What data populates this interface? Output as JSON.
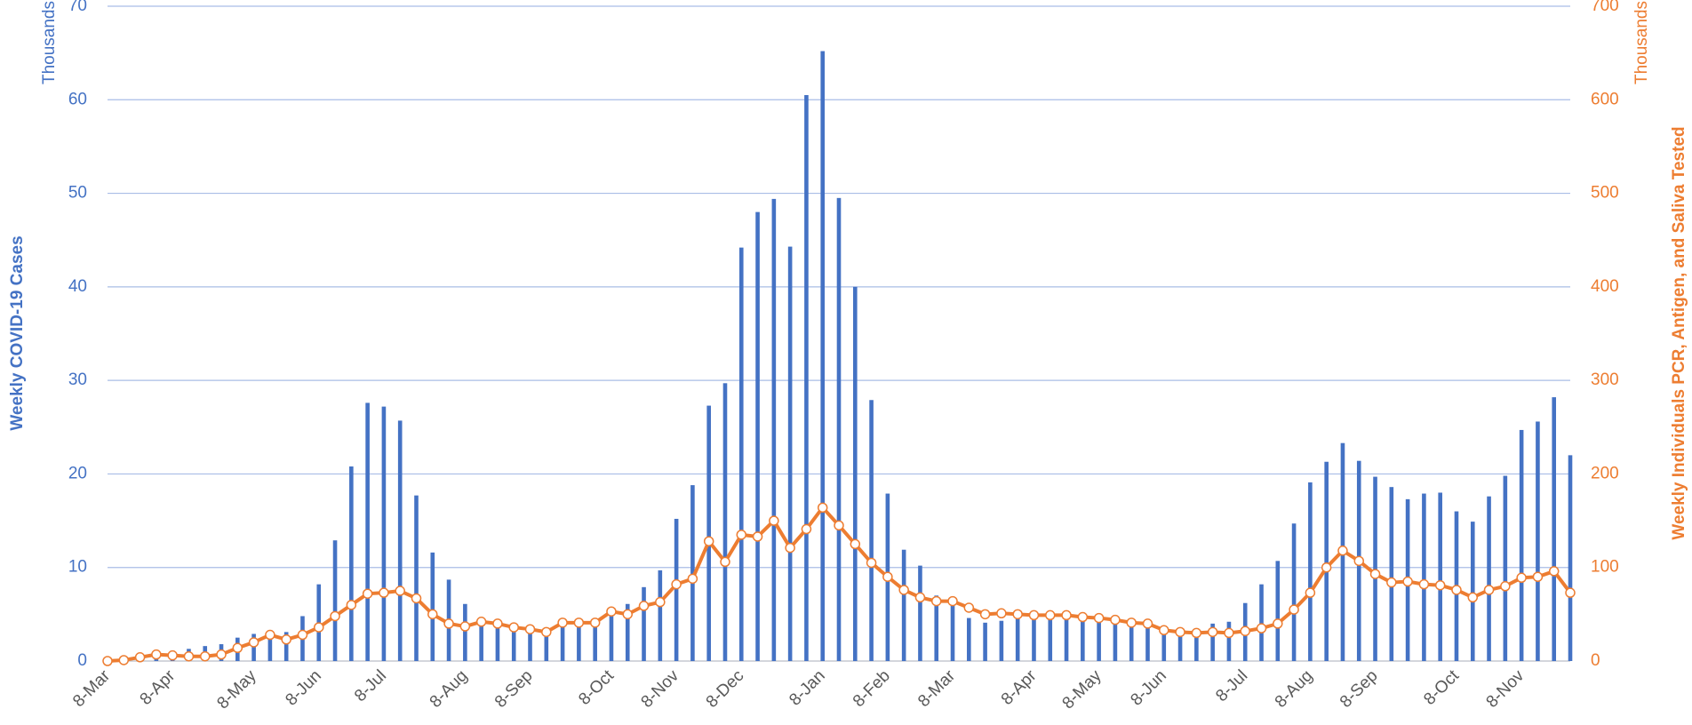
{
  "chart_data": {
    "type": "combo",
    "y_label": "Weekly COVID-19 Cases",
    "y2_label": "Weekly Individuals PCR, Antigen, and Saliva  Tested",
    "y_unit": "Thousands",
    "y2_unit": "Thousands",
    "categories": [
      "8-Mar",
      null,
      null,
      null,
      "8-Apr",
      null,
      null,
      null,
      null,
      "8-May",
      null,
      null,
      null,
      "8-Jun",
      null,
      null,
      null,
      "8-Jul",
      null,
      null,
      null,
      null,
      "8-Aug",
      null,
      null,
      null,
      "8-Sep",
      null,
      null,
      null,
      null,
      "8-Oct",
      null,
      null,
      null,
      "8-Nov",
      null,
      null,
      null,
      "8-Dec",
      null,
      null,
      null,
      null,
      "8-Jan",
      null,
      null,
      null,
      "8-Feb",
      null,
      null,
      null,
      "8-Mar",
      null,
      null,
      null,
      null,
      "8-Apr",
      null,
      null,
      null,
      "8-May",
      null,
      null,
      null,
      "8-Jun",
      null,
      null,
      null,
      null,
      "8-Jul",
      null,
      null,
      null,
      "8-Aug",
      null,
      null,
      null,
      "8-Sep",
      null,
      null,
      null,
      null,
      "8-Oct",
      null,
      null,
      null,
      "8-Nov",
      null,
      null,
      null
    ],
    "series": [
      {
        "type": "bar",
        "color": "#4472c4",
        "values": [
          0.1,
          0.3,
          0.8,
          1.0,
          1.1,
          1.3,
          1.6,
          1.8,
          2.5,
          2.9,
          2.9,
          3.1,
          4.8,
          8.2,
          12.9,
          20.8,
          27.6,
          27.2,
          25.7,
          17.7,
          11.6,
          8.7,
          6.1,
          4.6,
          4.2,
          3.9,
          3.6,
          3.4,
          4.0,
          4.2,
          4.5,
          5.3,
          6.1,
          7.9,
          9.7,
          15.2,
          18.8,
          27.3,
          29.7,
          44.2,
          48.0,
          49.4,
          44.3,
          60.5,
          65.2,
          49.5,
          40.0,
          27.9,
          17.9,
          11.9,
          10.2,
          7.0,
          6.4,
          4.6,
          4.1,
          4.3,
          4.8,
          5.1,
          5.0,
          4.9,
          4.8,
          4.7,
          4.5,
          4.1,
          3.8,
          3.3,
          3.1,
          3.2,
          4.0,
          4.2,
          6.2,
          8.2,
          10.7,
          14.7,
          19.1,
          21.3,
          23.3,
          21.4,
          19.7,
          18.6,
          17.3,
          17.9,
          18.0,
          16.0,
          14.9,
          17.6,
          19.8,
          24.7,
          25.6,
          28.2,
          22.0
        ]
      },
      {
        "type": "line",
        "axis": "y2",
        "color": "#ed7d31",
        "values": [
          0,
          1,
          4,
          7,
          6,
          5,
          5,
          7,
          14,
          20,
          28,
          23,
          28,
          36,
          48,
          60,
          72,
          73,
          75,
          67,
          50,
          40,
          37,
          42,
          40,
          36,
          34,
          31,
          41,
          41,
          41,
          53,
          50,
          59,
          63,
          82,
          88,
          128,
          106,
          135,
          133,
          150,
          121,
          141,
          164,
          145,
          125,
          105,
          90,
          76,
          68,
          64,
          64,
          57,
          50,
          51,
          50,
          49,
          49,
          49,
          47,
          46,
          44,
          41,
          40,
          33,
          31,
          30,
          31,
          30,
          32,
          35,
          40,
          55,
          73,
          100,
          118,
          107,
          93,
          84,
          85,
          82,
          81,
          76,
          68,
          76,
          80,
          89,
          90,
          96,
          73
        ]
      }
    ],
    "ylim": [
      0,
      70
    ],
    "yticks": [
      0,
      10,
      20,
      30,
      40,
      50,
      60,
      70
    ],
    "y2lim": [
      0,
      700
    ],
    "y2ticks": [
      0,
      100,
      200,
      300,
      400,
      500,
      600,
      700
    ],
    "grid": true,
    "grid_color": "#a9bde6"
  }
}
